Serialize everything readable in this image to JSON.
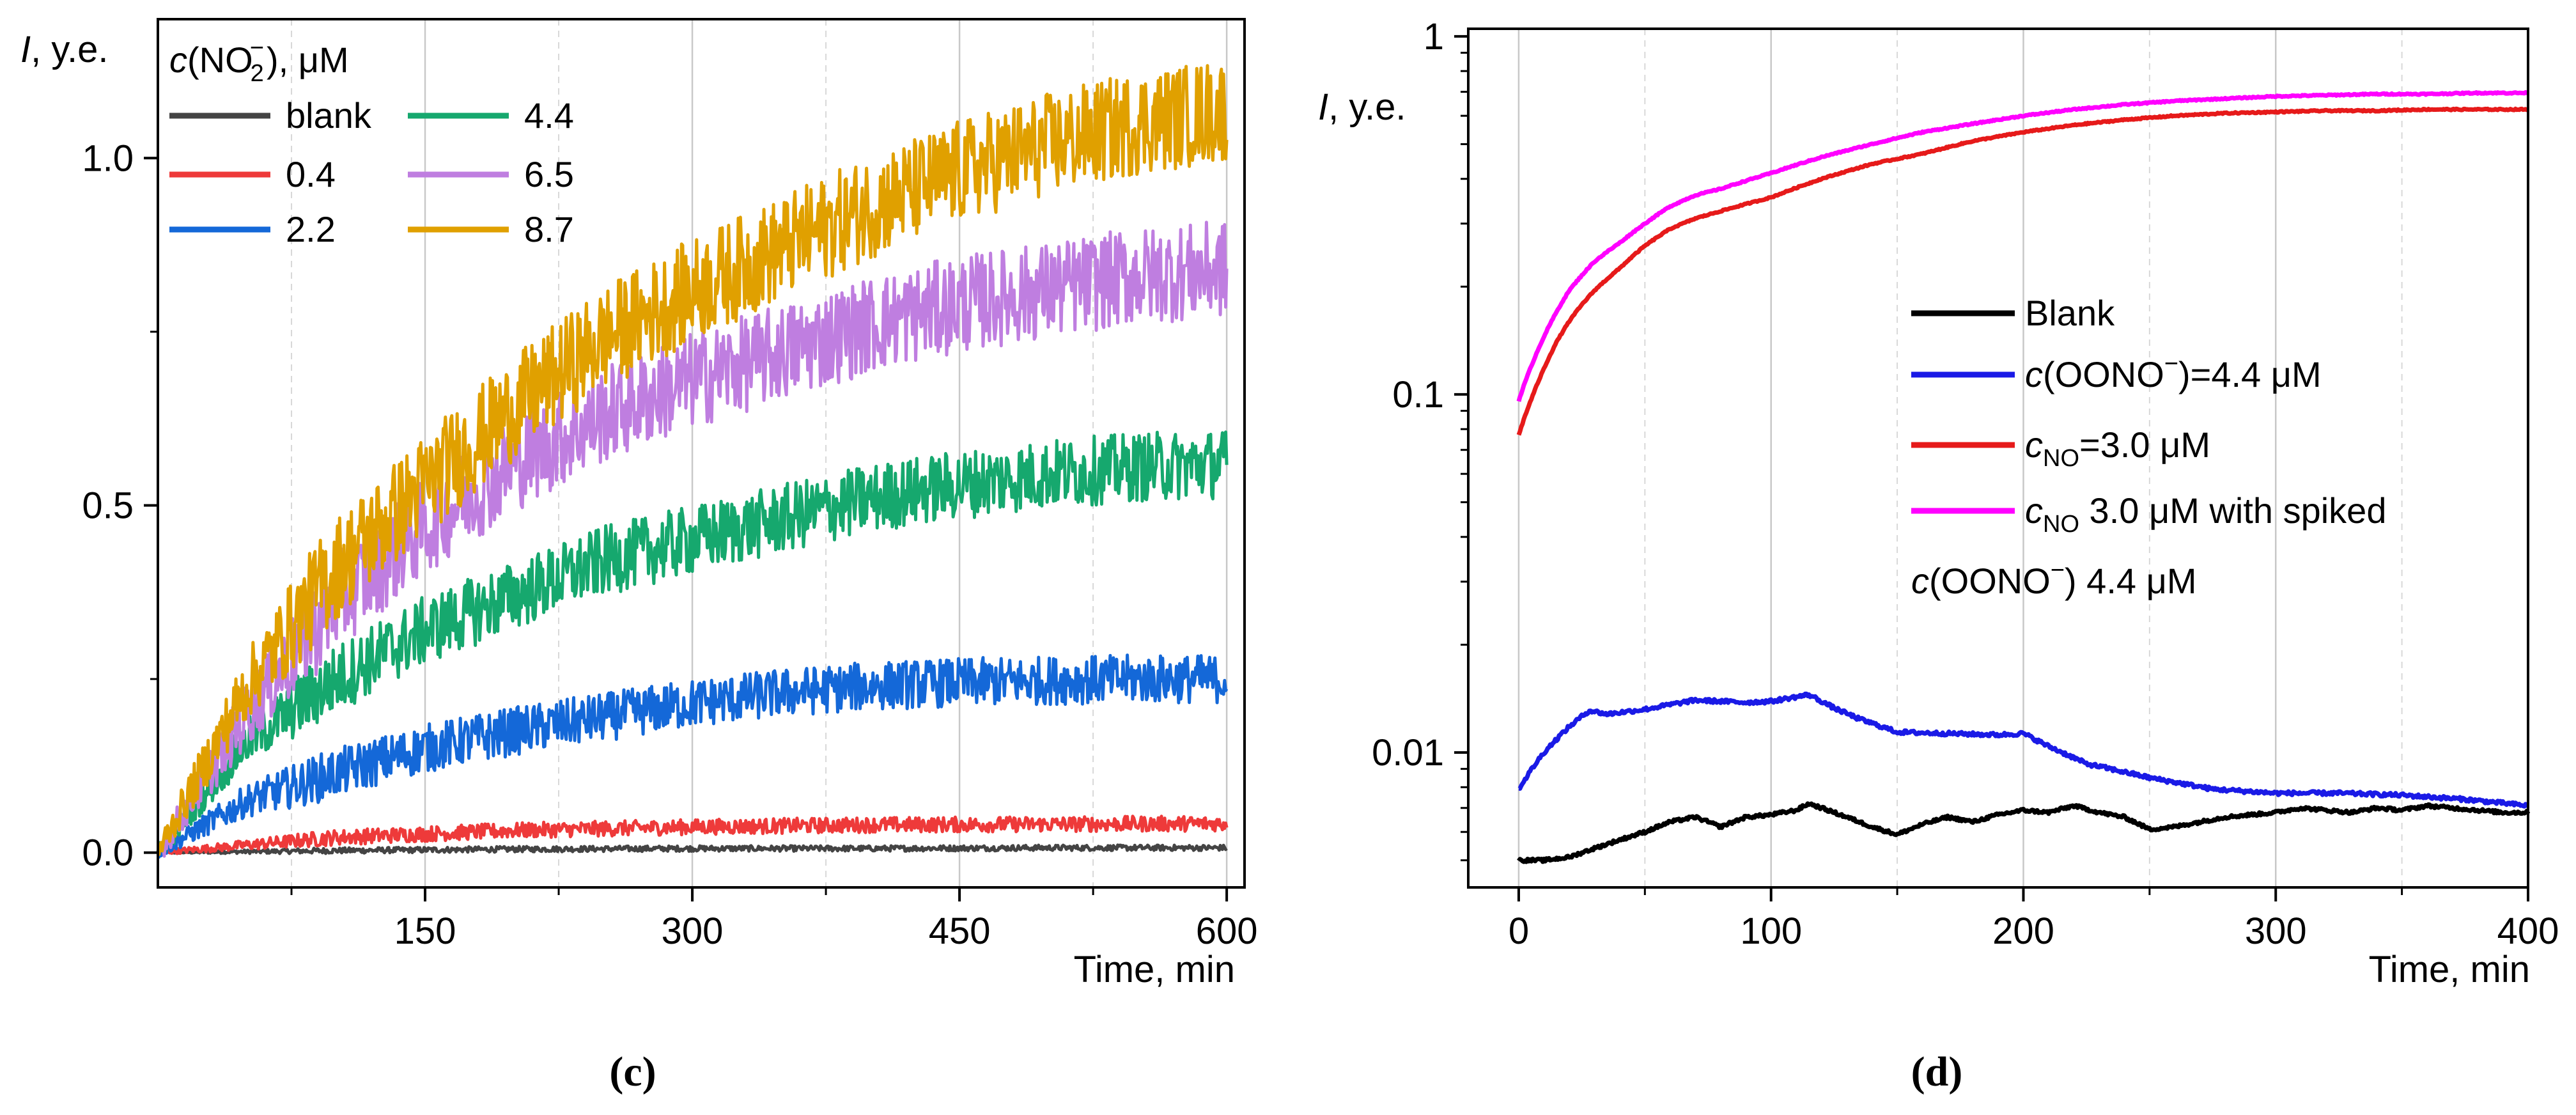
{
  "chart_data": [
    {
      "panel": "c",
      "type": "line",
      "caption": "(c)",
      "ylabel_italic": "I",
      "ylabel_rest": ", y.e.",
      "xlabel": "Time, min",
      "xlim": [
        0,
        610
      ],
      "ylim": [
        -0.05,
        1.2
      ],
      "x_ticks": [
        150,
        300,
        450,
        600
      ],
      "x_tick_labels": [
        "150",
        "300",
        "450",
        "600"
      ],
      "x_minor_ticks": [
        75,
        225,
        375,
        525
      ],
      "y_ticks": [
        0.0,
        0.5,
        1.0
      ],
      "y_tick_labels": [
        "0.0",
        "0.5",
        "1.0"
      ],
      "grid": "vertical",
      "legend_title": "c(NO2−), μM",
      "legend_title_parts": {
        "c": "c",
        "open": "(NO",
        "sub": "2",
        "sup": "−",
        "close": "), μM"
      },
      "legend_position": "top-left",
      "series": [
        {
          "name": "blank",
          "color": "#444444",
          "x": [
            0,
            100,
            200,
            300,
            400,
            500,
            600
          ],
          "values": [
            0.0,
            0.003,
            0.005,
            0.006,
            0.006,
            0.007,
            0.007
          ],
          "noise": 0.004
        },
        {
          "name": "0.4",
          "color": "#ee3a3a",
          "x": [
            0,
            100,
            200,
            300,
            400,
            500,
            600
          ],
          "values": [
            0.0,
            0.022,
            0.032,
            0.037,
            0.04,
            0.041,
            0.042
          ],
          "noise": 0.011
        },
        {
          "name": "2.2",
          "color": "#1468d8",
          "x": [
            0,
            50,
            100,
            150,
            200,
            250,
            300,
            350,
            400,
            450,
            500,
            550,
            600
          ],
          "values": [
            0.0,
            0.075,
            0.115,
            0.15,
            0.175,
            0.195,
            0.215,
            0.23,
            0.24,
            0.245,
            0.248,
            0.25,
            0.25
          ],
          "noise": 0.035
        },
        {
          "name": "4.4",
          "color": "#16a86e",
          "x": [
            0,
            50,
            100,
            150,
            200,
            250,
            300,
            350,
            400,
            450,
            500,
            550,
            600
          ],
          "values": [
            0.0,
            0.16,
            0.25,
            0.32,
            0.37,
            0.42,
            0.45,
            0.48,
            0.51,
            0.53,
            0.545,
            0.555,
            0.56
          ],
          "noise": 0.05
        },
        {
          "name": "6.5",
          "color": "#bf7ee0",
          "x": [
            0,
            50,
            100,
            150,
            200,
            250,
            300,
            350,
            400,
            450,
            500,
            550,
            600
          ],
          "values": [
            0.0,
            0.2,
            0.36,
            0.47,
            0.56,
            0.63,
            0.68,
            0.72,
            0.76,
            0.79,
            0.81,
            0.83,
            0.84
          ],
          "noise": 0.07
        },
        {
          "name": "8.7",
          "color": "#e0a000",
          "x": [
            0,
            50,
            100,
            150,
            200,
            250,
            300,
            350,
            400,
            450,
            500,
            550,
            600
          ],
          "values": [
            0.0,
            0.24,
            0.41,
            0.53,
            0.64,
            0.74,
            0.81,
            0.87,
            0.93,
            0.98,
            1.02,
            1.05,
            1.07
          ],
          "noise": 0.075
        }
      ]
    },
    {
      "panel": "d",
      "type": "line",
      "caption": "(d)",
      "yscale": "log",
      "ylabel_italic": "I",
      "ylabel_rest": ", y.e.",
      "xlabel": "Time, min",
      "xlim": [
        -20,
        400
      ],
      "ylim": [
        0.0042,
        1.05
      ],
      "x_ticks": [
        0,
        100,
        200,
        300,
        400
      ],
      "x_tick_labels": [
        "0",
        "100",
        "200",
        "300",
        "400"
      ],
      "x_minor_ticks": [
        50,
        150,
        250,
        350
      ],
      "y_ticks": [
        0.01,
        0.1,
        1
      ],
      "y_tick_labels": [
        "0.01",
        "0.1",
        "1"
      ],
      "grid": "vertical",
      "legend_position": "center-right",
      "legend_note": {
        "c": "c",
        "rest": "(OONO",
        "sup": "−",
        "end": ") 4.4 μM"
      },
      "series": [
        {
          "name": "Blank",
          "label": {
            "plain": "Blank"
          },
          "color": "#000000",
          "x": [
            0,
            10,
            20,
            30,
            40,
            50,
            60,
            70,
            80,
            90,
            100,
            110,
            115,
            120,
            130,
            140,
            150,
            160,
            170,
            180,
            190,
            200,
            210,
            220,
            230,
            240,
            250,
            260,
            270,
            280,
            290,
            300,
            310,
            320,
            330,
            340,
            350,
            360,
            370,
            380,
            390,
            400
          ],
          "values": [
            0.005,
            0.005,
            0.0051,
            0.0054,
            0.0057,
            0.006,
            0.0064,
            0.0066,
            0.0062,
            0.0066,
            0.0067,
            0.0069,
            0.0072,
            0.007,
            0.0066,
            0.0062,
            0.0059,
            0.0063,
            0.0066,
            0.0064,
            0.0067,
            0.0069,
            0.0068,
            0.0071,
            0.0068,
            0.0066,
            0.0061,
            0.0062,
            0.0064,
            0.0066,
            0.0067,
            0.0068,
            0.007,
            0.0069,
            0.0068,
            0.007,
            0.0069,
            0.0071,
            0.007,
            0.0069,
            0.0068,
            0.0068
          ],
          "noise": 0.01
        },
        {
          "name": "c(OONO−)=4.4 μM",
          "label": {
            "c": "c",
            "rest": "(OONO",
            "sup": "−",
            "end": ")=4.4 μM"
          },
          "color": "#1a1ae6",
          "x": [
            0,
            10,
            20,
            28,
            35,
            50,
            70,
            90,
            100,
            110,
            115,
            125,
            135,
            150,
            170,
            190,
            200,
            210,
            225,
            250,
            275,
            300,
            325,
            350,
            375,
            400
          ],
          "values": [
            0.0079,
            0.01,
            0.0118,
            0.0131,
            0.0128,
            0.0132,
            0.014,
            0.0138,
            0.0139,
            0.0143,
            0.0145,
            0.0133,
            0.0124,
            0.0114,
            0.0113,
            0.0112,
            0.0113,
            0.0104,
            0.0093,
            0.0085,
            0.0079,
            0.0077,
            0.0077,
            0.0076,
            0.0074,
            0.0071
          ],
          "noise": 0.012
        },
        {
          "name": "cNO=3.0 μM",
          "label": {
            "c": "c",
            "sub": "NO",
            "end": "=3.0 μM"
          },
          "color": "#e61a1a",
          "x": [
            0,
            5,
            10,
            15,
            20,
            25,
            30,
            40,
            50,
            60,
            70,
            80,
            90,
            100,
            120,
            140,
            160,
            180,
            200,
            220,
            240,
            260,
            280,
            300,
            320,
            340,
            360,
            380,
            400
          ],
          "values": [
            0.077,
            0.097,
            0.118,
            0.14,
            0.16,
            0.178,
            0.195,
            0.225,
            0.26,
            0.29,
            0.31,
            0.325,
            0.34,
            0.355,
            0.4,
            0.44,
            0.47,
            0.51,
            0.54,
            0.565,
            0.585,
            0.6,
            0.61,
            0.615,
            0.62,
            0.62,
            0.625,
            0.625,
            0.625
          ],
          "noise": 0.004
        },
        {
          "name": "cNO 3.0 μM with spiked",
          "label": {
            "c": "c",
            "sub": "NO",
            "end": " 3.0 μM with spiked"
          },
          "color": "#ff00ff",
          "x": [
            0,
            5,
            10,
            15,
            20,
            25,
            30,
            40,
            50,
            60,
            70,
            80,
            90,
            100,
            120,
            140,
            160,
            180,
            200,
            220,
            240,
            260,
            280,
            300,
            320,
            340,
            360,
            380,
            400
          ],
          "values": [
            0.096,
            0.12,
            0.145,
            0.17,
            0.195,
            0.215,
            0.235,
            0.265,
            0.3,
            0.335,
            0.36,
            0.375,
            0.395,
            0.415,
            0.46,
            0.5,
            0.54,
            0.57,
            0.6,
            0.625,
            0.645,
            0.66,
            0.67,
            0.68,
            0.685,
            0.69,
            0.69,
            0.695,
            0.695
          ],
          "noise": 0.004
        }
      ]
    }
  ]
}
